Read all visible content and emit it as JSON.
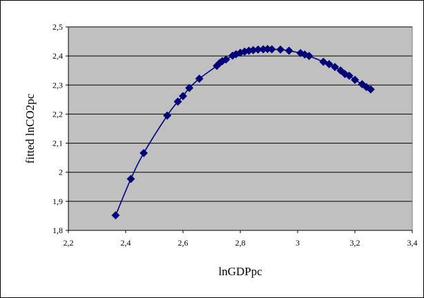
{
  "chart_data": {
    "type": "line",
    "title": "",
    "xlabel": "lnGDPpc",
    "ylabel": "fitted  lnCO2pc",
    "xlim": [
      2.2,
      3.4
    ],
    "ylim": [
      1.8,
      2.5
    ],
    "x_ticks": [
      "2,2",
      "2,4",
      "2,6",
      "2,8",
      "3",
      "3,2",
      "3,4"
    ],
    "y_ticks": [
      "1,8",
      "1,9",
      "2",
      "2,1",
      "2,2",
      "2,3",
      "2,4",
      "2,5"
    ],
    "grid": "horizontal",
    "legend": "none",
    "series": [
      {
        "marker": "diamond",
        "color": "#000080",
        "x": [
          2.365,
          2.418,
          2.463,
          2.545,
          2.582,
          2.6,
          2.622,
          2.657,
          2.718,
          2.728,
          2.737,
          2.75,
          2.773,
          2.785,
          2.8,
          2.815,
          2.83,
          2.845,
          2.862,
          2.88,
          2.895,
          2.91,
          2.94,
          2.97,
          3.01,
          3.025,
          3.04,
          3.09,
          3.11,
          3.13,
          3.15,
          3.165,
          3.18,
          3.2,
          3.225,
          3.24,
          3.255
        ],
        "y": [
          1.852,
          1.977,
          2.066,
          2.195,
          2.243,
          2.262,
          2.29,
          2.322,
          2.366,
          2.376,
          2.382,
          2.388,
          2.401,
          2.406,
          2.411,
          2.415,
          2.418,
          2.42,
          2.422,
          2.423,
          2.424,
          2.423,
          2.422,
          2.418,
          2.41,
          2.405,
          2.4,
          2.38,
          2.372,
          2.362,
          2.35,
          2.338,
          2.332,
          2.318,
          2.303,
          2.293,
          2.285
        ]
      }
    ],
    "colors": {
      "plot_background": "#c0c0c0",
      "line": "#000080",
      "marker": "#000080"
    }
  }
}
